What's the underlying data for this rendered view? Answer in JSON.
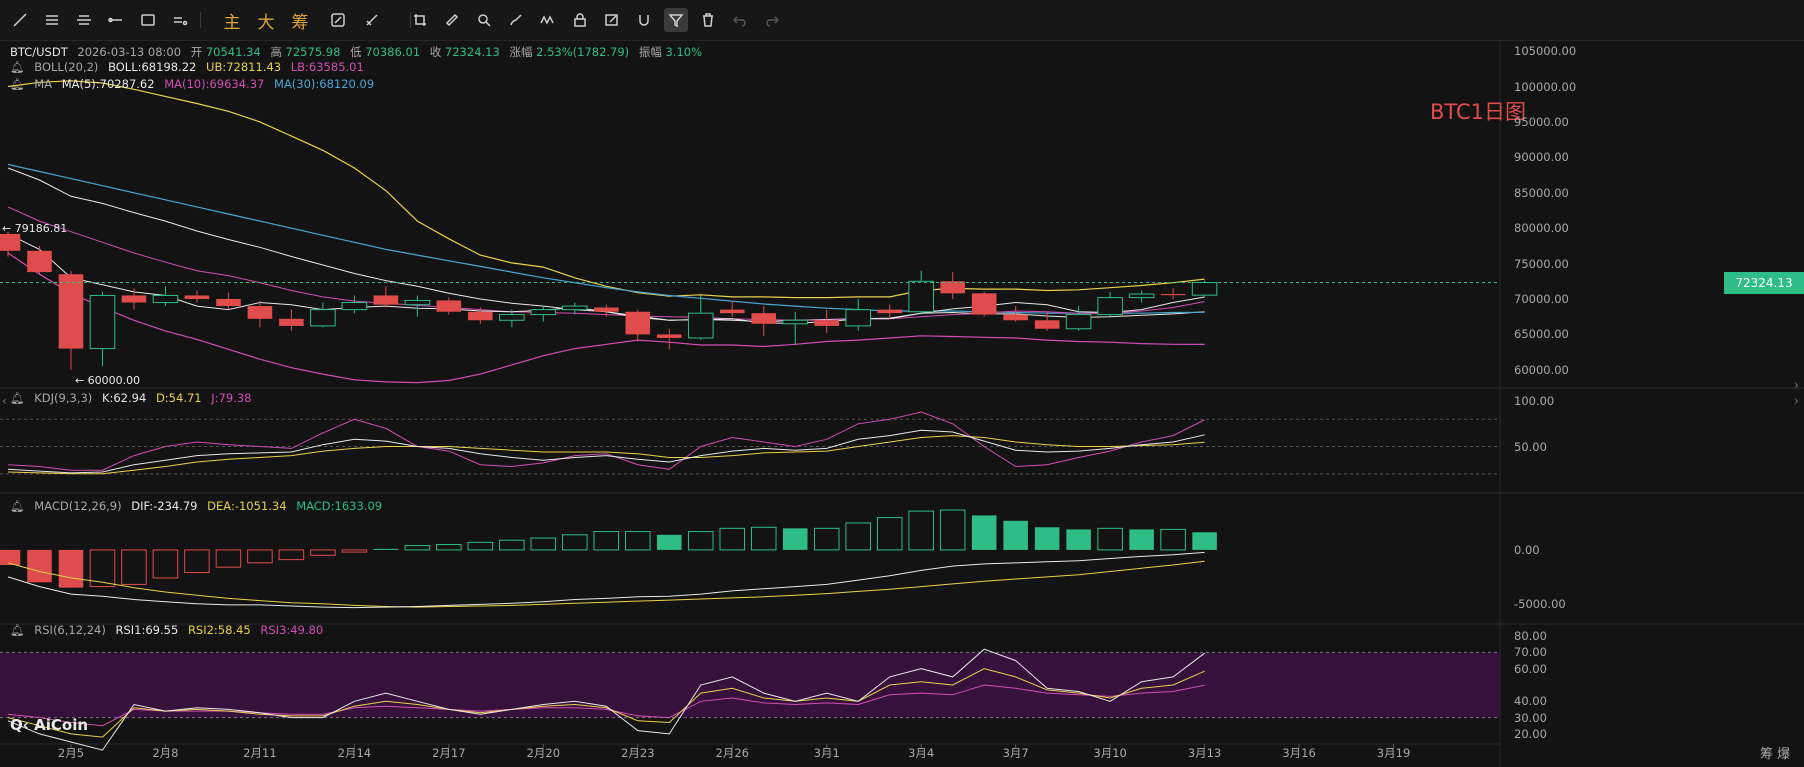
{
  "toolbar": {
    "items": [
      {
        "name": "trend-line-icon"
      },
      {
        "name": "horizontal-lines-icon"
      },
      {
        "name": "parallel-lines-icon"
      },
      {
        "name": "horizontal-ray-icon"
      },
      {
        "name": "rectangle-icon"
      },
      {
        "name": "more-shapes-icon"
      },
      {
        "name": "main-indicator",
        "label": "主"
      },
      {
        "name": "big-order",
        "label": "大"
      },
      {
        "name": "chips",
        "label": "筹"
      },
      {
        "name": "compare-icon"
      },
      {
        "name": "measure-icon"
      },
      {
        "name": "copy-icon"
      },
      {
        "name": "ruler-icon"
      },
      {
        "name": "zoom-icon"
      },
      {
        "name": "brush-icon"
      },
      {
        "name": "pattern-icon"
      },
      {
        "name": "lock-icon"
      },
      {
        "name": "edit-icon"
      },
      {
        "name": "magnet-icon"
      },
      {
        "name": "filter-icon"
      },
      {
        "name": "delete-icon"
      },
      {
        "name": "undo-icon"
      },
      {
        "name": "redo-icon"
      }
    ]
  },
  "legend": {
    "symbol": "BTC/USDT",
    "datetime": "2026-03-13 08:00",
    "open_label": "开",
    "open": "70541.34",
    "high_label": "高",
    "high": "72575.98",
    "low_label": "低",
    "low": "70386.01",
    "close_label": "收",
    "close": "72324.13",
    "change_label": "涨幅",
    "change": "2.53%(1782.79)",
    "amp_label": "振幅",
    "amp": "3.10%",
    "boll_name": "BOLL(20,2)",
    "boll": "BOLL:68198.22",
    "boll_ub": "UB:72811.43",
    "boll_lb": "LB:63585.01",
    "ma_name": "MA",
    "ma5": "MA(5):70287.62",
    "ma10": "MA(10):69634.37",
    "ma30": "MA(30):68120.09",
    "kdj_name": "KDJ(9,3,3)",
    "kdj_k": "K:62.94",
    "kdj_d": "D:54.71",
    "kdj_j": "J:79.38",
    "macd_name": "MACD(12,26,9)",
    "macd_dif": "DIF:-234.79",
    "macd_dea": "DEA:-1051.34",
    "macd_val": "MACD:1633.09",
    "rsi_name": "RSI(6,12,24)",
    "rsi1": "RSI1:69.55",
    "rsi2": "RSI2:58.45",
    "rsi3": "RSI3:49.80"
  },
  "annotation": "BTC1日图",
  "current_price": "72324.13",
  "logo": "AiCoin",
  "footer_right": "筹 爆",
  "colors": {
    "up": "#2ebd85",
    "down": "#e04b4b",
    "bg": "#131313",
    "boll_mid": "#e8e8e8",
    "boll_ub": "#e8d24a",
    "boll_lb": "#d24db5",
    "ma5": "#e8e8e8",
    "ma10": "#d24db5",
    "ma30": "#4aa6d6"
  },
  "chart_data": {
    "type": "candlestick",
    "dates": [
      "2/3",
      "2/4",
      "2/5",
      "2/6",
      "2/7",
      "2/8",
      "2/9",
      "2/10",
      "2/11",
      "2/12",
      "2/13",
      "2/14",
      "2/15",
      "2/16",
      "2/17",
      "2/18",
      "2/19",
      "2/20",
      "2/21",
      "2/22",
      "2/23",
      "2/24",
      "2/25",
      "2/26",
      "2/27",
      "2/28",
      "3/1",
      "3/2",
      "3/3",
      "3/4",
      "3/5",
      "3/6",
      "3/7",
      "3/8",
      "3/9",
      "3/10",
      "3/11",
      "3/12",
      "3/13"
    ],
    "x_tick_labels": [
      "2月5",
      "2月8",
      "2月11",
      "2月14",
      "2月17",
      "2月20",
      "2月23",
      "2月26",
      "3月1",
      "3月4",
      "3月7",
      "3月10",
      "3月13",
      "3月16",
      "3月19"
    ],
    "x_tick_dates": [
      "2/5",
      "2/8",
      "2/11",
      "2/14",
      "2/17",
      "2/20",
      "2/23",
      "2/26",
      "3/1",
      "3/4",
      "3/7",
      "3/10",
      "3/13",
      "3/16",
      "3/19"
    ],
    "x_extent": [
      "2/3",
      "3/22"
    ],
    "ohlc": [
      [
        79186,
        79500,
        76000,
        76800
      ],
      [
        76800,
        77500,
        73500,
        73800
      ],
      [
        73500,
        74000,
        60000,
        63000
      ],
      [
        63000,
        71000,
        60500,
        70500
      ],
      [
        70500,
        71500,
        68500,
        69500
      ],
      [
        69500,
        71800,
        69000,
        70500
      ],
      [
        70500,
        71200,
        69500,
        70000
      ],
      [
        70000,
        70900,
        68500,
        69000
      ],
      [
        69000,
        69800,
        66000,
        67200
      ],
      [
        67200,
        68500,
        65500,
        66200
      ],
      [
        66200,
        69500,
        66000,
        68500
      ],
      [
        68500,
        70500,
        68000,
        69500
      ],
      [
        70500,
        71800,
        68800,
        69200
      ],
      [
        69200,
        70500,
        67500,
        69800
      ],
      [
        69800,
        70200,
        67800,
        68200
      ],
      [
        68200,
        68800,
        66500,
        67000
      ],
      [
        67000,
        68500,
        66000,
        67800
      ],
      [
        67800,
        69000,
        66800,
        68500
      ],
      [
        68500,
        69500,
        67800,
        69000
      ],
      [
        68800,
        69200,
        67500,
        68200
      ],
      [
        68200,
        68500,
        64000,
        65000
      ],
      [
        65000,
        65800,
        62900,
        64500
      ],
      [
        64500,
        70500,
        64200,
        68000
      ],
      [
        68500,
        69800,
        67500,
        68000
      ],
      [
        68000,
        69000,
        64800,
        66500
      ],
      [
        66500,
        68200,
        63500,
        67000
      ],
      [
        67000,
        68500,
        65200,
        66200
      ],
      [
        66200,
        70000,
        65500,
        68500
      ],
      [
        68500,
        69200,
        67200,
        68000
      ],
      [
        68200,
        74000,
        67800,
        72500
      ],
      [
        72500,
        73800,
        70000,
        70800
      ],
      [
        70800,
        71000,
        67500,
        67800
      ],
      [
        67800,
        69000,
        66800,
        67000
      ],
      [
        67000,
        68200,
        65500,
        65800
      ],
      [
        65800,
        69000,
        65500,
        67800
      ],
      [
        67800,
        71000,
        67500,
        70200
      ],
      [
        70200,
        71200,
        69500,
        70700
      ],
      [
        70700,
        71500,
        70000,
        70541
      ],
      [
        70541,
        72576,
        70386,
        72324
      ]
    ],
    "boll_ub": [
      100000,
      100600,
      100800,
      100500,
      99600,
      98600,
      97600,
      96500,
      95000,
      93000,
      91000,
      88500,
      85300,
      81000,
      78500,
      76200,
      75100,
      74500,
      73000,
      71800,
      70900,
      70400,
      70600,
      70300,
      70300,
      70200,
      70200,
      70300,
      70300,
      71200,
      71500,
      71400,
      71400,
      71200,
      71300,
      71600,
      71900,
      72300,
      72811
    ],
    "boll_mid": [
      88500,
      86800,
      84500,
      83500,
      82200,
      81000,
      79600,
      78400,
      77300,
      76000,
      74800,
      73600,
      72600,
      71800,
      70800,
      70000,
      69400,
      69000,
      68500,
      68200,
      67600,
      67000,
      67100,
      67000,
      66800,
      67000,
      67100,
      67200,
      67300,
      68000,
      68100,
      67900,
      67900,
      67600,
      67400,
      67500,
      67700,
      67900,
      68198
    ],
    "boll_lb": [
      76500,
      73500,
      70800,
      68800,
      67000,
      65500,
      64300,
      62900,
      61500,
      60300,
      59400,
      58600,
      58300,
      58200,
      58500,
      59400,
      60700,
      62000,
      63000,
      63600,
      64200,
      63900,
      63500,
      63500,
      63300,
      63600,
      64000,
      64200,
      64500,
      64800,
      64700,
      64600,
      64500,
      64200,
      64000,
      63900,
      63700,
      63600,
      63585
    ],
    "ma5": [
      79186,
      77000,
      73000,
      72000,
      71000,
      70500,
      69000,
      68500,
      69500,
      69200,
      68500,
      68800,
      69000,
      68700,
      68600,
      68300,
      68200,
      68400,
      68800,
      68200,
      67400,
      67000,
      67100,
      67200,
      66600,
      66600,
      66800,
      67200,
      67200,
      68000,
      68600,
      69000,
      69500,
      69200,
      68200,
      68100,
      68500,
      69500,
      70288
    ],
    "ma10": [
      83000,
      81000,
      79500,
      78000,
      76500,
      75200,
      74000,
      73300,
      72300,
      71200,
      70300,
      69700,
      69400,
      69100,
      68800,
      68500,
      68200,
      68100,
      68000,
      67800,
      67600,
      67500,
      67400,
      67200,
      67100,
      67000,
      67000,
      67200,
      67200,
      67500,
      67800,
      68000,
      68300,
      68200,
      68000,
      68000,
      68300,
      68800,
      69634
    ],
    "ma30": [
      89000,
      88000,
      87000,
      86000,
      85000,
      84000,
      83000,
      82000,
      81000,
      80000,
      79000,
      78000,
      77000,
      76200,
      75400,
      74600,
      73800,
      73000,
      72300,
      71600,
      71000,
      70500,
      70100,
      69700,
      69300,
      69000,
      68700,
      68500,
      68300,
      68300,
      68300,
      68200,
      68100,
      68000,
      68000,
      68000,
      68000,
      68100,
      68120
    ],
    "price_axis": {
      "ticks": [
        105000,
        100000,
        95000,
        90000,
        85000,
        80000,
        75000,
        70000,
        65000,
        60000
      ],
      "labels": [
        "105000.00",
        "100000.00",
        "95000.00",
        "90000.00",
        "85000.00",
        "80000.00",
        "75000.00",
        "70000.00",
        "65000.00",
        "60000.00"
      ],
      "min": 58000,
      "max": 106000
    },
    "marks": [
      {
        "label": "79186.81",
        "date": "2/3"
      },
      {
        "label": "60000.00",
        "date": "2/5"
      }
    ],
    "kdj": {
      "k": [
        25,
        23,
        21,
        22,
        30,
        35,
        40,
        42,
        43,
        44,
        52,
        58,
        56,
        50,
        48,
        42,
        38,
        35,
        38,
        40,
        36,
        33,
        40,
        45,
        48,
        46,
        48,
        58,
        62,
        68,
        66,
        56,
        46,
        44,
        45,
        48,
        52,
        55,
        62.94
      ],
      "d": [
        22,
        21,
        20,
        20,
        24,
        28,
        33,
        36,
        38,
        40,
        45,
        48,
        50,
        50,
        50,
        48,
        46,
        44,
        44,
        44,
        42,
        38,
        38,
        40,
        43,
        44,
        45,
        50,
        55,
        60,
        62,
        60,
        55,
        52,
        50,
        50,
        51,
        52,
        54.71
      ],
      "j": [
        30,
        28,
        24,
        24,
        40,
        50,
        55,
        52,
        50,
        48,
        65,
        80,
        70,
        50,
        45,
        30,
        28,
        32,
        40,
        42,
        30,
        25,
        50,
        60,
        55,
        50,
        58,
        75,
        80,
        88,
        75,
        50,
        28,
        30,
        38,
        45,
        55,
        62,
        79.38
      ],
      "ticks": [
        100,
        50
      ],
      "labels": [
        "100.00",
        "50.00"
      ],
      "dashed": [
        80,
        50,
        20
      ],
      "min": 0,
      "max": 110
    },
    "macd": {
      "hist": [
        -1400,
        -3000,
        -3500,
        -3400,
        -3200,
        -2600,
        -2100,
        -1600,
        -1200,
        -900,
        -500,
        -200,
        100,
        400,
        500,
        700,
        900,
        1100,
        1400,
        1700,
        1700,
        1400,
        1700,
        2000,
        2100,
        2000,
        2000,
        2500,
        3000,
        3600,
        3700,
        3200,
        2700,
        2100,
        1900,
        2000,
        1900,
        1900,
        1633.09
      ],
      "dif": [
        -2500,
        -3400,
        -4100,
        -4300,
        -4600,
        -4800,
        -5000,
        -5100,
        -5100,
        -5200,
        -5300,
        -5350,
        -5300,
        -5250,
        -5150,
        -5050,
        -4950,
        -4800,
        -4600,
        -4500,
        -4350,
        -4300,
        -4100,
        -3800,
        -3600,
        -3400,
        -3200,
        -2800,
        -2400,
        -1900,
        -1500,
        -1300,
        -1200,
        -1100,
        -1000,
        -800,
        -600,
        -450,
        -234.79
      ],
      "dea": [
        -1200,
        -2000,
        -2600,
        -3000,
        -3500,
        -3900,
        -4200,
        -4500,
        -4700,
        -4900,
        -5000,
        -5150,
        -5250,
        -5300,
        -5250,
        -5200,
        -5150,
        -5050,
        -4950,
        -4850,
        -4750,
        -4650,
        -4550,
        -4450,
        -4350,
        -4200,
        -4050,
        -3850,
        -3650,
        -3400,
        -3150,
        -2900,
        -2700,
        -2500,
        -2300,
        -2000,
        -1700,
        -1400,
        -1051.34
      ],
      "ticks": [
        0,
        -5000
      ],
      "labels": [
        "0.00",
        "-5000.00"
      ],
      "min": -6500,
      "max": 5000
    },
    "rsi": {
      "rsi1": [
        28,
        20,
        15,
        10,
        38,
        34,
        36,
        35,
        33,
        30,
        30,
        40,
        45,
        40,
        35,
        32,
        35,
        38,
        40,
        37,
        22,
        20,
        50,
        55,
        45,
        40,
        45,
        40,
        55,
        60,
        55,
        72,
        65,
        48,
        46,
        40,
        52,
        55,
        69.55
      ],
      "rsi2": [
        30,
        25,
        20,
        18,
        36,
        34,
        35,
        34,
        32,
        31,
        31,
        37,
        40,
        38,
        35,
        33,
        35,
        37,
        38,
        36,
        28,
        27,
        45,
        48,
        42,
        40,
        42,
        40,
        50,
        52,
        50,
        60,
        55,
        47,
        45,
        42,
        48,
        50,
        58.45
      ],
      "rsi3": [
        32,
        30,
        27,
        25,
        35,
        34,
        34,
        34,
        33,
        32,
        32,
        36,
        37,
        36,
        35,
        34,
        35,
        36,
        36,
        35,
        31,
        30,
        40,
        42,
        39,
        38,
        39,
        38,
        44,
        45,
        44,
        50,
        48,
        45,
        44,
        43,
        45,
        46,
        49.8
      ],
      "ticks": [
        80,
        70,
        60,
        40,
        30,
        20
      ],
      "labels": [
        "80.00",
        "70.00",
        "60.00",
        "40.00",
        "30.00",
        "20.00"
      ],
      "band": [
        30,
        70
      ],
      "min": 15,
      "max": 85
    }
  }
}
